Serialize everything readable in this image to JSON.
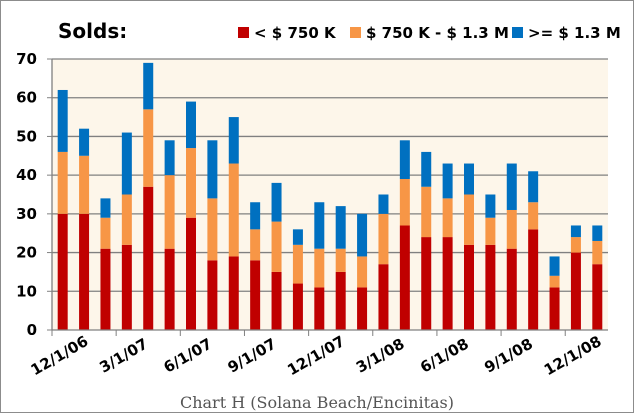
{
  "chart_data": {
    "type": "bar",
    "stacked": true,
    "title": "Solds:",
    "caption": "Chart H (Solana Beach/Encinitas)",
    "xlabel": "",
    "ylabel": "",
    "ylim": [
      0,
      70
    ],
    "yticks": [
      0,
      10,
      20,
      30,
      40,
      50,
      60,
      70
    ],
    "grid": true,
    "legend_position": "top-right",
    "categories": [
      "12/1/06",
      "1/1/07",
      "2/1/07",
      "3/1/07",
      "4/1/07",
      "5/1/07",
      "6/1/07",
      "7/1/07",
      "8/1/07",
      "9/1/07",
      "10/1/07",
      "11/1/07",
      "12/1/07",
      "1/1/08",
      "2/1/08",
      "3/1/08",
      "4/1/08",
      "5/1/08",
      "6/1/08",
      "7/1/08",
      "8/1/08",
      "9/1/08",
      "10/1/08",
      "11/1/08",
      "12/1/08",
      "1/1/09"
    ],
    "xtick_labels": [
      "12/1/06",
      "3/1/07",
      "6/1/07",
      "9/1/07",
      "12/1/07",
      "3/1/08",
      "6/1/08",
      "9/1/08",
      "12/1/08"
    ],
    "xtick_every": 3,
    "series": [
      {
        "name": "< $ 750 K",
        "color": "#C00000",
        "values": [
          30,
          30,
          21,
          22,
          37,
          21,
          29,
          18,
          19,
          18,
          15,
          12,
          11,
          15,
          11,
          17,
          27,
          24,
          24,
          22,
          22,
          21,
          26,
          11,
          20,
          17
        ]
      },
      {
        "name": "$ 750 K - $ 1.3 M",
        "color": "#F79646",
        "values": [
          16,
          15,
          8,
          13,
          20,
          19,
          18,
          16,
          24,
          8,
          13,
          10,
          10,
          6,
          8,
          13,
          12,
          13,
          10,
          13,
          7,
          10,
          7,
          3,
          4,
          6
        ]
      },
      {
        "name": ">= $ 1.3 M",
        "color": "#0070C0",
        "values": [
          16,
          7,
          5,
          16,
          12,
          9,
          12,
          15,
          12,
          7,
          10,
          4,
          12,
          11,
          11,
          5,
          10,
          9,
          9,
          8,
          6,
          12,
          8,
          5,
          3,
          4
        ]
      }
    ],
    "totals": [
      62,
      52,
      34,
      51,
      69,
      49,
      59,
      49,
      55,
      33,
      38,
      26,
      33,
      32,
      30,
      35,
      49,
      46,
      43,
      43,
      35,
      43,
      41,
      19,
      27,
      27
    ]
  },
  "colors": {
    "plot_background": "#FDF6EA",
    "gridline": "#808080",
    "axis": "#808080"
  }
}
